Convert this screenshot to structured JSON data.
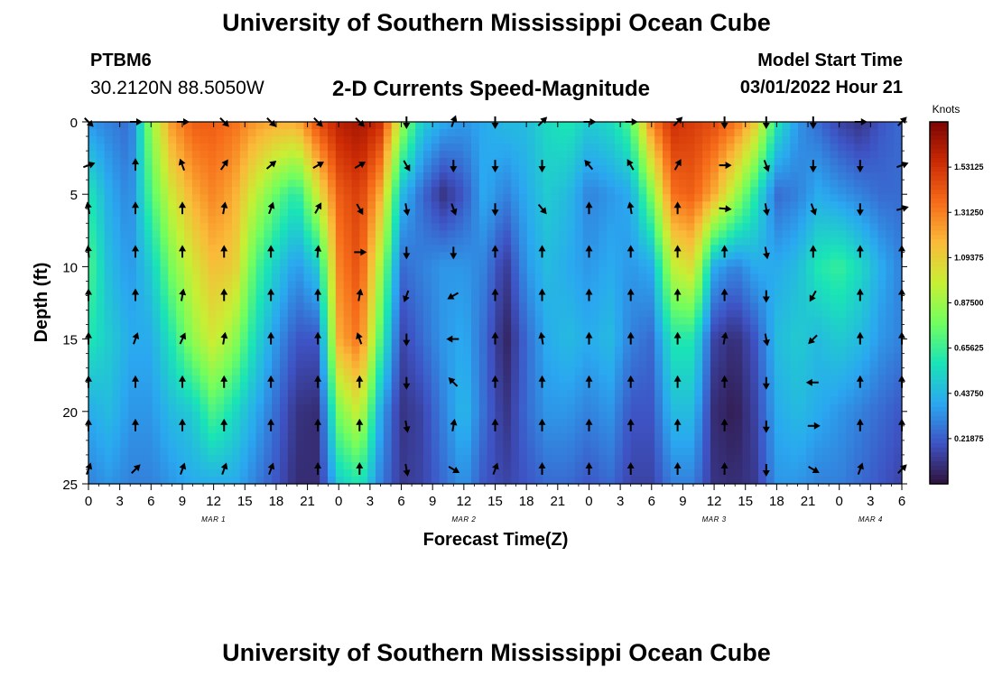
{
  "header": {
    "title": "University of Southern Mississippi Ocean Cube",
    "station_id": "PTBM6",
    "station_coords": "30.2120N  88.5050W",
    "subtitle": "2-D Currents Speed-Magnitude",
    "model_start_label": "Model Start Time",
    "model_start_value": "03/01/2022 Hour 21"
  },
  "footer": {
    "title": "University of Southern Mississippi Ocean Cube"
  },
  "chart_data": {
    "type": "heatmap",
    "title": "2-D Currents Speed-Magnitude",
    "xlabel": "Forecast Time(Z)",
    "ylabel": "Depth (ft)",
    "x_ticks": [
      "0",
      "3",
      "6",
      "9",
      "12",
      "15",
      "18",
      "21",
      "0",
      "3",
      "6",
      "9",
      "12",
      "15",
      "18",
      "21",
      "0",
      "3",
      "6",
      "9",
      "12",
      "15",
      "18",
      "21",
      "0",
      "3",
      "6"
    ],
    "x_range_hours": [
      0,
      78
    ],
    "y_range_ft": [
      0,
      25
    ],
    "y_ticks": [
      0,
      5,
      10,
      15,
      20,
      25
    ],
    "date_labels": [
      {
        "text": "MAR 1",
        "hour": 12
      },
      {
        "text": "MAR 2",
        "hour": 36
      },
      {
        "text": "MAR 3",
        "hour": 60
      },
      {
        "text": "MAR 4",
        "hour": 75
      }
    ],
    "colorbar": {
      "title": "Knots",
      "tick_labels": [
        "1.53125",
        "1.31250",
        "1.09375",
        "0.87500",
        "0.65625",
        "0.43750",
        "0.21875"
      ],
      "tick_values": [
        1.53125,
        1.3125,
        1.09375,
        0.875,
        0.65625,
        0.4375,
        0.21875
      ],
      "min": 0,
      "max": 1.75,
      "colors": [
        "#30123b",
        "#3e53c4",
        "#2aa8f0",
        "#1ae4b6",
        "#72fe5e",
        "#c8ef34",
        "#faba39",
        "#f66b19",
        "#cb2a04",
        "#7a0403"
      ]
    },
    "speed_profiles": {
      "hours": [
        0,
        2,
        4,
        6,
        8,
        10,
        12,
        14,
        16,
        18,
        20,
        22,
        24,
        26,
        28,
        30,
        32,
        34,
        36,
        38,
        40,
        42,
        44,
        46,
        48,
        50,
        52,
        54,
        56,
        58,
        60,
        62,
        64,
        66,
        68,
        70,
        72,
        74,
        76,
        78
      ],
      "depths_ft": [
        0,
        5,
        10,
        15,
        20,
        25
      ],
      "knots": [
        [
          0.35,
          0.6,
          0.7,
          0.6,
          0.4,
          0.3
        ],
        [
          0.3,
          0.4,
          0.45,
          0.5,
          0.45,
          0.35
        ],
        [
          0.25,
          0.3,
          0.35,
          0.4,
          0.35,
          0.3
        ],
        [
          0.85,
          0.7,
          0.5,
          0.4,
          0.35,
          0.3
        ],
        [
          1.25,
          1.0,
          0.8,
          0.6,
          0.45,
          0.35
        ],
        [
          1.4,
          1.2,
          1.0,
          0.85,
          0.5,
          0.4
        ],
        [
          1.4,
          1.3,
          1.15,
          1.0,
          0.7,
          0.4
        ],
        [
          1.35,
          1.2,
          1.1,
          0.85,
          0.55,
          0.4
        ],
        [
          1.25,
          0.95,
          0.7,
          0.55,
          0.4,
          0.3
        ],
        [
          1.2,
          0.75,
          0.5,
          0.35,
          0.25,
          0.2
        ],
        [
          1.2,
          0.6,
          0.35,
          0.2,
          0.1,
          0.08
        ],
        [
          1.45,
          1.0,
          0.5,
          0.2,
          0.08,
          0.08
        ],
        [
          1.6,
          1.4,
          1.3,
          1.2,
          0.8,
          0.5
        ],
        [
          1.65,
          1.5,
          1.45,
          1.35,
          1.0,
          0.6
        ],
        [
          1.55,
          1.2,
          0.9,
          0.7,
          0.4,
          0.3
        ],
        [
          0.9,
          0.45,
          0.25,
          0.15,
          0.1,
          0.12
        ],
        [
          0.5,
          0.25,
          0.3,
          0.25,
          0.15,
          0.15
        ],
        [
          0.4,
          0.1,
          0.35,
          0.35,
          0.3,
          0.25
        ],
        [
          0.35,
          0.2,
          0.35,
          0.4,
          0.45,
          0.35
        ],
        [
          0.4,
          0.4,
          0.3,
          0.25,
          0.25,
          0.2
        ],
        [
          0.45,
          0.3,
          0.12,
          0.05,
          0.1,
          0.15
        ],
        [
          0.45,
          0.4,
          0.35,
          0.25,
          0.25,
          0.2
        ],
        [
          0.55,
          0.5,
          0.45,
          0.4,
          0.35,
          0.25
        ],
        [
          0.6,
          0.45,
          0.4,
          0.45,
          0.35,
          0.25
        ],
        [
          0.5,
          0.3,
          0.35,
          0.4,
          0.3,
          0.2
        ],
        [
          0.55,
          0.35,
          0.4,
          0.45,
          0.35,
          0.25
        ],
        [
          0.7,
          0.4,
          0.35,
          0.3,
          0.2,
          0.15
        ],
        [
          1.3,
          0.8,
          0.4,
          0.25,
          0.2,
          0.15
        ],
        [
          1.55,
          1.35,
          0.95,
          0.6,
          0.45,
          0.3
        ],
        [
          1.5,
          1.4,
          1.05,
          0.6,
          0.45,
          0.3
        ],
        [
          1.45,
          1.2,
          0.4,
          0.15,
          0.08,
          0.1
        ],
        [
          1.35,
          0.9,
          0.3,
          0.08,
          0.03,
          0.08
        ],
        [
          1.1,
          0.6,
          0.4,
          0.2,
          0.15,
          0.12
        ],
        [
          0.6,
          0.25,
          0.4,
          0.45,
          0.4,
          0.35
        ],
        [
          0.35,
          0.3,
          0.45,
          0.5,
          0.45,
          0.35
        ],
        [
          0.25,
          0.4,
          0.6,
          0.45,
          0.4,
          0.3
        ],
        [
          0.15,
          0.35,
          0.65,
          0.5,
          0.35,
          0.3
        ],
        [
          0.1,
          0.3,
          0.55,
          0.45,
          0.3,
          0.25
        ],
        [
          0.2,
          0.25,
          0.4,
          0.35,
          0.25,
          0.2
        ],
        [
          0.25,
          0.25,
          0.3,
          0.3,
          0.2,
          0.15
        ]
      ]
    },
    "vectors": {
      "hours": [
        0,
        4.5,
        9,
        13,
        17.5,
        22,
        26,
        30.5,
        35,
        39,
        43.5,
        48,
        52,
        56.5,
        61,
        65,
        69.5,
        74,
        78
      ],
      "depths_ft": [
        0,
        3,
        6,
        9,
        12,
        15,
        18,
        21,
        24
      ],
      "direction_deg_cw_from_up": [
        [
          135,
          90,
          90,
          135,
          135,
          135,
          135,
          180,
          20,
          180,
          45,
          90,
          90,
          45,
          180,
          180,
          180,
          90,
          45
        ],
        [
          70,
          0,
          -20,
          35,
          50,
          60,
          60,
          150,
          180,
          180,
          180,
          -40,
          -30,
          30,
          90,
          160,
          180,
          180,
          70
        ],
        [
          -10,
          0,
          0,
          10,
          20,
          30,
          150,
          170,
          160,
          180,
          140,
          0,
          -10,
          0,
          95,
          170,
          160,
          180,
          75
        ],
        [
          -5,
          0,
          0,
          0,
          0,
          5,
          90,
          180,
          180,
          0,
          0,
          0,
          0,
          0,
          0,
          170,
          0,
          0,
          0
        ],
        [
          0,
          0,
          10,
          0,
          0,
          0,
          10,
          200,
          -120,
          0,
          0,
          0,
          0,
          0,
          0,
          180,
          210,
          0,
          0
        ],
        [
          0,
          20,
          25,
          10,
          0,
          0,
          -20,
          180,
          -90,
          0,
          -10,
          0,
          0,
          0,
          10,
          170,
          225,
          0,
          0
        ],
        [
          0,
          0,
          0,
          0,
          0,
          0,
          0,
          180,
          -45,
          0,
          0,
          0,
          0,
          0,
          0,
          180,
          -90,
          0,
          0
        ],
        [
          0,
          0,
          0,
          0,
          0,
          0,
          0,
          170,
          10,
          0,
          0,
          0,
          0,
          0,
          0,
          180,
          90,
          0,
          0
        ],
        [
          20,
          45,
          20,
          20,
          20,
          0,
          0,
          170,
          120,
          20,
          0,
          0,
          0,
          0,
          0,
          180,
          120,
          20,
          45
        ]
      ]
    }
  }
}
